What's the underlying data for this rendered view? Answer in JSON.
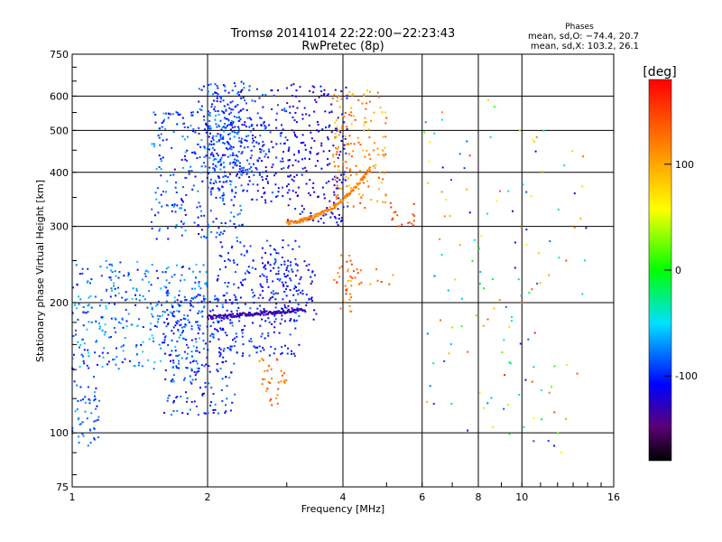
{
  "chart_data": {
    "type": "scatter",
    "title": "Tromsø 20141014 22:22:00−22:23:43",
    "subtitle": "RwPretec (8p)",
    "xlabel": "Frequency [MHz]",
    "ylabel": "Stationary phase Virtual Height [km]",
    "x_scale": "log",
    "y_scale": "log",
    "xlim": [
      1,
      16
    ],
    "ylim": [
      75,
      750
    ],
    "x_ticks": [
      1,
      2,
      4,
      6,
      8,
      10,
      16
    ],
    "y_ticks": [
      75,
      100,
      200,
      300,
      400,
      500,
      600,
      750
    ],
    "grid": true,
    "phase_box": {
      "heading": "Phases",
      "line1": "mean, sd,O: −74.4, 20.7",
      "line2": "mean, sd,X: 103.2, 26.1"
    },
    "colorbar": {
      "unit": "[deg]",
      "range": [
        -180,
        180
      ],
      "ticks": [
        -100,
        0,
        100
      ]
    },
    "clusters": [
      {
        "f": [
          1.0,
          1.15
        ],
        "h": [
          90,
          135
        ],
        "phase": [
          -110,
          -60
        ]
      },
      {
        "f": [
          1.0,
          2.0
        ],
        "h": [
          140,
          250
        ],
        "phase": [
          -110,
          -50
        ]
      },
      {
        "f": [
          1.6,
          2.3
        ],
        "h": [
          110,
          210
        ],
        "phase": [
          -130,
          -70
        ]
      },
      {
        "f": [
          1.5,
          2.4
        ],
        "h": [
          280,
          560
        ],
        "phase": [
          -120,
          -60
        ]
      },
      {
        "f": [
          1.9,
          2.7
        ],
        "h": [
          400,
          650
        ],
        "phase": [
          -110,
          -70
        ]
      },
      {
        "f": [
          2.0,
          3.0
        ],
        "h": [
          340,
          620
        ],
        "phase": [
          -130,
          -80
        ]
      },
      {
        "f": [
          2.1,
          3.2
        ],
        "h": [
          150,
          280
        ],
        "phase": [
          -120,
          -80
        ]
      },
      {
        "f": [
          3.0,
          4.1
        ],
        "h": [
          300,
          650
        ],
        "phase": [
          -135,
          -100
        ]
      },
      {
        "f": [
          3.8,
          5.0
        ],
        "h": [
          330,
          620
        ],
        "phase": [
          80,
          150
        ]
      },
      {
        "f": [
          2.6,
          3.5
        ],
        "h": [
          180,
          250
        ],
        "phase": [
          -130,
          -95
        ]
      },
      {
        "f": [
          4.1,
          5.2
        ],
        "h": [
          220,
          240
        ],
        "phase": [
          90,
          150
        ]
      },
      {
        "f": [
          5.0,
          5.8
        ],
        "h": [
          300,
          340
        ],
        "phase": [
          130,
          170
        ]
      },
      {
        "f": [
          3.8,
          4.2
        ],
        "h": [
          190,
          260
        ],
        "phase": [
          110,
          160
        ]
      },
      {
        "f": [
          2.6,
          3.0
        ],
        "h": [
          115,
          150
        ],
        "phase": [
          110,
          150
        ]
      },
      {
        "f": [
          6.0,
          9.0
        ],
        "h": [
          100,
          600
        ],
        "phase": [
          -130,
          150
        ]
      },
      {
        "f": [
          9.0,
          14.0
        ],
        "h": [
          90,
          600
        ],
        "phase": [
          -130,
          170
        ]
      }
    ],
    "traces": [
      {
        "f": [
          2.0,
          3.3
        ],
        "h": [
          185,
          192
        ],
        "phase": -130
      },
      {
        "f": [
          3.0,
          4.6
        ],
        "h": [
          305,
          330,
          410
        ],
        "phase": 120
      }
    ]
  }
}
